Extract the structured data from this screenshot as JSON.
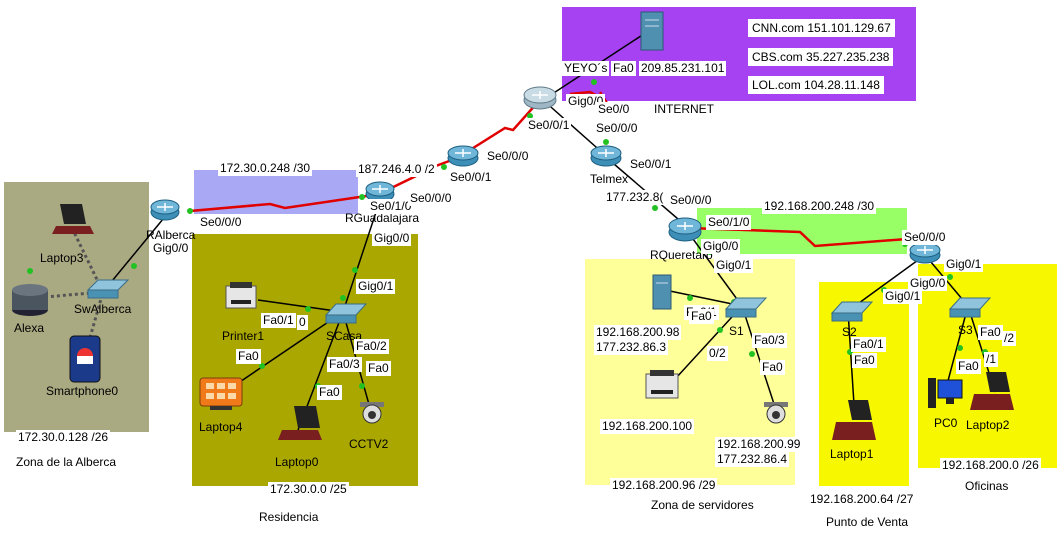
{
  "zones": {
    "alberca": {
      "network": "172.30.0.128 /26",
      "name": "Zona de la Alberca"
    },
    "residencia": {
      "network": "172.30.0.0 /25",
      "name": "Residencia"
    },
    "servidores": {
      "network": "192.168.200.96 /29",
      "name": "Zona de servidores"
    },
    "punto_venta": {
      "network": "192.168.200.64 /27",
      "name": "Punto de Venta"
    },
    "oficinas": {
      "network": "192.168.200.0 /26",
      "name": "Oficinas"
    },
    "internet": {
      "name": "INTERNET"
    }
  },
  "link_networks": {
    "alberca_gdl": "172.30.0.248 /30",
    "gdl_isp": "187.246.4.0 /2",
    "queretaro_oficinas": "192.168.200.248 /30",
    "telmex_queretaro": "177.232.8("
  },
  "dns": [
    {
      "host": "CNN.com",
      "ip": "151.101.129.67"
    },
    {
      "host": "CBS.com",
      "ip": "35.227.235.238"
    },
    {
      "host": "LOL.com",
      "ip": "104.28.11.148"
    }
  ],
  "internet": {
    "server_label": "YEYO´s",
    "server_port": "Fa0",
    "server_ip": "209.85.231.101"
  },
  "devices": {
    "laptop3": "Laptop3",
    "alexa": "Alexa",
    "sw_alberca": "SwAlberca",
    "smartphone0": "Smartphone0",
    "r_alberca": "RAlberca",
    "r_guadalajara": "RGuadalajara",
    "printer1": "Printer1",
    "s_casa": "SCasa",
    "laptop4": "Laptop4",
    "laptop0": "Laptop0",
    "cctv2": "CCTV2",
    "telmex": "Telmex",
    "r_queretaro": "RQueretaro",
    "s1": "S1",
    "s2": "S2",
    "s3": "S3",
    "laptop1": "Laptop1",
    "pc0": "PC0",
    "laptop2": "Laptop2"
  },
  "servers": {
    "srv1_ip": "192.168.200.98",
    "srv1_pub": "177.232.86.3",
    "printer_ip": "192.168.200.100",
    "cctv_ip": "192.168.200.99",
    "cctv_pub": "177.232.86.4"
  },
  "ports": {
    "alberca_se": "Se0/0/0",
    "alberca_gig": "Gig0/0",
    "gdl_se010": "Se0/1/0",
    "gdl_se000": "Se0/0/0",
    "gdl_gig": "Gig0/0",
    "scasa_gig": "Gig0/1",
    "scasa_fa01": "Fa0/1",
    "scasa_f0": "0",
    "scasa_fa02": "Fa0/2",
    "scasa_fa03": "Fa0/3",
    "printer_fa0": "Fa0",
    "laptop0_fa0": "Fa0",
    "cctv_fa0": "Fa0",
    "isp1_se000": "Se0/0/0",
    "isp1_se001": "Se0/0/1",
    "isp2_gig": "Gig0/0",
    "isp2_se00": "Se0/0",
    "isp2_se001": "Se0/0/1",
    "telmex_se000": "Se0/0/0",
    "telmex_se001": "Se0/0/1",
    "qro_se000": "Se0/0/0",
    "qro_se010": "Se0/1/0",
    "qro_gig00": "Gig0/0",
    "s1_gig": "Gig0/1",
    "s1_fa01": "Fa0/1",
    "s1_fa0": "Fa0",
    "s1_fa02": "0/2",
    "s1_fa03": "Fa0/3",
    "cctv1_fa0": "Fa0",
    "ofi_se000": "Se0/0/0",
    "ofi_gig01": "Gig0/1",
    "ofi_gig00": "Gig0/0",
    "s2_gig": "Gig0/1",
    "s2_fa01": "Fa0/1",
    "laptop1_fa0": "Fa0",
    "s3_fa0": "Fa0",
    "s3_fa02": "/2",
    "s3_1": "/1",
    "pc0_fa0": "Fa0"
  },
  "colors": {
    "alberca_zone": "#a9a982",
    "residencia_zone": "#aaa800",
    "yellow_zone": "#ffff99",
    "punto_zone": "#f7f700",
    "internet_zone": "#a642f2",
    "link_blue": "#a8a8f5",
    "link_green": "#99ff66",
    "serial": "#e00000"
  }
}
